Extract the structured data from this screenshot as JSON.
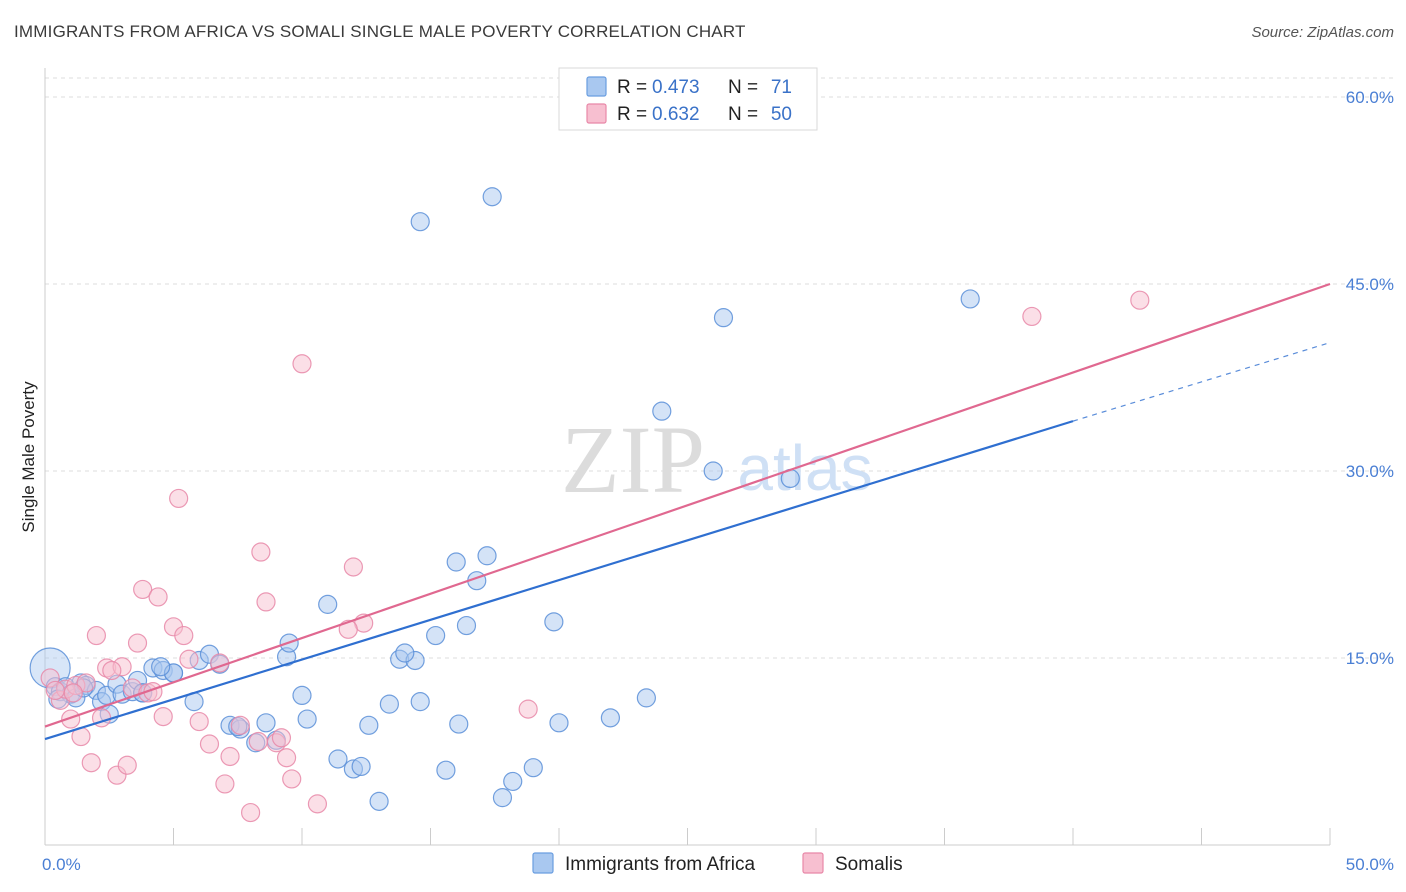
{
  "header": {
    "title": "IMMIGRANTS FROM AFRICA VS SOMALI SINGLE MALE POVERTY CORRELATION CHART",
    "source": "Source: ZipAtlas.com"
  },
  "watermark": {
    "zip": "ZIP",
    "atlas": "atlas"
  },
  "legend_top": {
    "r_label": "R =",
    "n_label": "N =",
    "rows": [
      {
        "r": "0.473",
        "n": "71",
        "color": "#a9c8f0",
        "stroke": "#6a9ee0"
      },
      {
        "r": "0.632",
        "n": "50",
        "color": "#f7bfd0",
        "stroke": "#e888a8"
      }
    ]
  },
  "chart_data": {
    "type": "scatter",
    "title": "IMMIGRANTS FROM AFRICA VS SOMALI SINGLE MALE POVERTY CORRELATION CHART",
    "xlabel": "",
    "ylabel": "Single Male Poverty",
    "xlim": [
      0,
      50
    ],
    "ylim": [
      0,
      60
    ],
    "x_tick_labels": [
      "0.0%",
      "50.0%"
    ],
    "y_ticks": [
      15,
      30,
      45,
      60
    ],
    "y_tick_labels": [
      "15.0%",
      "30.0%",
      "45.0%",
      "60.0%"
    ],
    "grid": true,
    "legend": "bottom-center",
    "series": [
      {
        "name": "Immigrants from Africa",
        "color": "#a9c8f0",
        "stroke": "#5a8fd8",
        "trend_color": "#2f6fd0",
        "trend": {
          "x0": 0,
          "y0": 8.5,
          "x1": 40,
          "y1": 34,
          "dashed_to": [
            50,
            40.3
          ]
        },
        "points": [
          [
            0.2,
            14.2
          ],
          [
            0.4,
            12.7
          ],
          [
            0.6,
            12.3
          ],
          [
            0.8,
            12.7
          ],
          [
            1.0,
            12.1
          ],
          [
            1.2,
            11.8
          ],
          [
            1.4,
            13.0
          ],
          [
            1.6,
            12.8
          ],
          [
            2.0,
            12.4
          ],
          [
            2.2,
            11.5
          ],
          [
            2.4,
            12.0
          ],
          [
            2.8,
            12.9
          ],
          [
            3.0,
            12.1
          ],
          [
            3.4,
            12.3
          ],
          [
            3.6,
            13.2
          ],
          [
            3.8,
            12.2
          ],
          [
            4.2,
            14.2
          ],
          [
            4.6,
            14.0
          ],
          [
            5.0,
            13.8
          ],
          [
            5.8,
            11.5
          ],
          [
            6.0,
            14.8
          ],
          [
            6.4,
            15.3
          ],
          [
            6.8,
            14.5
          ],
          [
            7.2,
            9.6
          ],
          [
            7.6,
            9.3
          ],
          [
            8.2,
            8.2
          ],
          [
            8.6,
            9.8
          ],
          [
            9.0,
            8.4
          ],
          [
            9.4,
            15.1
          ],
          [
            10.0,
            12.0
          ],
          [
            10.2,
            10.1
          ],
          [
            11.0,
            19.3
          ],
          [
            11.4,
            6.9
          ],
          [
            12.0,
            6.1
          ],
          [
            12.6,
            9.6
          ],
          [
            13.0,
            3.5
          ],
          [
            13.4,
            11.3
          ],
          [
            13.8,
            14.9
          ],
          [
            14.4,
            14.8
          ],
          [
            14.6,
            11.5
          ],
          [
            15.2,
            16.8
          ],
          [
            15.6,
            6.0
          ],
          [
            16.0,
            22.7
          ],
          [
            16.4,
            17.6
          ],
          [
            16.8,
            21.2
          ],
          [
            17.2,
            23.2
          ],
          [
            17.8,
            3.8
          ],
          [
            18.2,
            5.1
          ],
          [
            19.0,
            6.2
          ],
          [
            19.8,
            17.9
          ],
          [
            20.0,
            9.8
          ],
          [
            22.0,
            10.2
          ],
          [
            23.4,
            11.8
          ],
          [
            24.0,
            34.8
          ],
          [
            26.0,
            30.0
          ],
          [
            26.4,
            42.3
          ],
          [
            29.0,
            29.4
          ],
          [
            36.0,
            43.8
          ],
          [
            14.6,
            50.0
          ],
          [
            17.4,
            52.0
          ],
          [
            3.8,
            12.2
          ],
          [
            5.0,
            13.8
          ],
          [
            7.5,
            9.5
          ],
          [
            2.5,
            10.5
          ],
          [
            0.5,
            11.7
          ],
          [
            1.5,
            12.6
          ],
          [
            4.5,
            14.3
          ],
          [
            9.5,
            16.2
          ],
          [
            12.3,
            6.3
          ],
          [
            14.0,
            15.4
          ],
          [
            16.1,
            9.7
          ]
        ]
      },
      {
        "name": "Somalis",
        "color": "#f7bfd0",
        "stroke": "#e888a8",
        "trend_color": "#e06890",
        "trend": {
          "x0": 0,
          "y0": 9.5,
          "x1": 50,
          "y1": 45
        },
        "points": [
          [
            0.2,
            13.4
          ],
          [
            0.6,
            11.6
          ],
          [
            0.8,
            12.5
          ],
          [
            1.0,
            10.1
          ],
          [
            1.2,
            12.8
          ],
          [
            1.4,
            8.7
          ],
          [
            1.8,
            6.6
          ],
          [
            2.0,
            16.8
          ],
          [
            2.2,
            10.2
          ],
          [
            2.4,
            14.2
          ],
          [
            2.8,
            5.6
          ],
          [
            3.0,
            14.3
          ],
          [
            3.2,
            6.4
          ],
          [
            3.4,
            12.6
          ],
          [
            3.6,
            16.2
          ],
          [
            3.8,
            20.5
          ],
          [
            4.0,
            12.2
          ],
          [
            4.4,
            19.9
          ],
          [
            4.6,
            10.3
          ],
          [
            5.0,
            17.5
          ],
          [
            5.2,
            27.8
          ],
          [
            5.4,
            16.8
          ],
          [
            5.6,
            14.9
          ],
          [
            6.0,
            9.9
          ],
          [
            6.4,
            8.1
          ],
          [
            7.0,
            4.9
          ],
          [
            7.2,
            7.1
          ],
          [
            7.6,
            9.6
          ],
          [
            8.0,
            2.6
          ],
          [
            8.4,
            23.5
          ],
          [
            8.6,
            19.5
          ],
          [
            9.0,
            8.2
          ],
          [
            9.4,
            7.0
          ],
          [
            9.6,
            5.3
          ],
          [
            10.0,
            38.6
          ],
          [
            10.6,
            3.3
          ],
          [
            12.0,
            22.3
          ],
          [
            12.4,
            17.8
          ],
          [
            18.8,
            10.9
          ],
          [
            38.4,
            42.4
          ],
          [
            42.6,
            43.7
          ],
          [
            0.4,
            12.4
          ],
          [
            1.6,
            13.0
          ],
          [
            2.6,
            14.0
          ],
          [
            4.2,
            12.3
          ],
          [
            6.8,
            14.6
          ],
          [
            8.3,
            8.3
          ],
          [
            9.2,
            8.6
          ],
          [
            11.8,
            17.3
          ],
          [
            1.1,
            12.2
          ]
        ]
      }
    ]
  },
  "legend_bottom": {
    "items": [
      {
        "label": "Immigrants from Africa",
        "color": "#a9c8f0",
        "stroke": "#6a9ee0"
      },
      {
        "label": "Somalis",
        "color": "#f7bfd0",
        "stroke": "#e888a8"
      }
    ]
  }
}
